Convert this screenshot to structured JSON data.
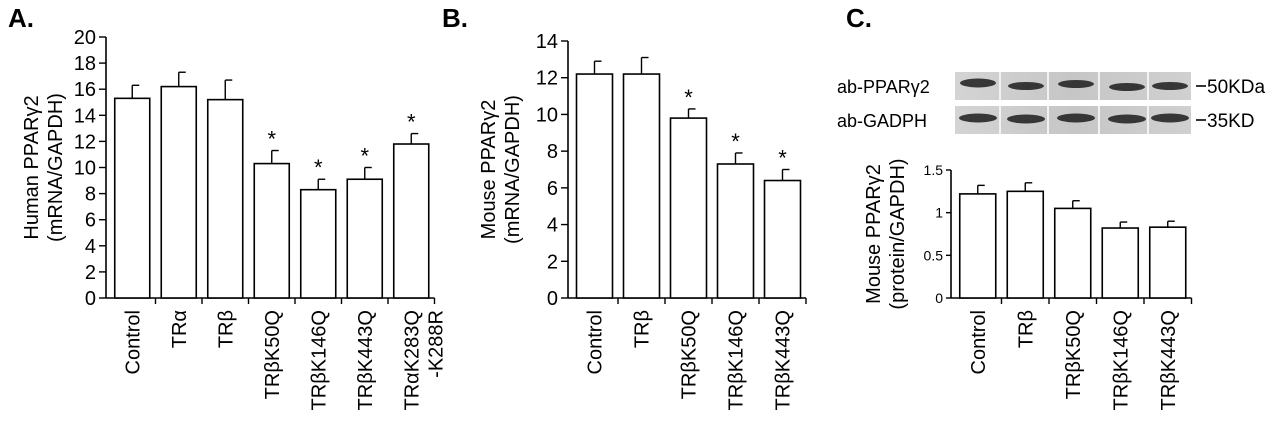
{
  "chart_data": [
    {
      "panel": "A.",
      "type": "bar",
      "ylabel_lines": [
        "Human PPARγ2",
        "(mRNA/GAPDH)"
      ],
      "ylim": [
        0,
        20
      ],
      "yticks": [
        "0",
        "2",
        "4",
        "6",
        "8",
        "10",
        "12",
        "14",
        "16",
        "18",
        "20"
      ],
      "categories": [
        [
          "Control"
        ],
        [
          "TRα"
        ],
        [
          "TRβ"
        ],
        [
          "TRβK50Q"
        ],
        [
          "TRβK146Q"
        ],
        [
          "TRβK443Q"
        ],
        [
          "TRαK283Q",
          "-K288R"
        ]
      ],
      "values": [
        15.3,
        16.2,
        15.2,
        10.3,
        8.3,
        9.1,
        11.8
      ],
      "errors": [
        1.0,
        1.1,
        1.5,
        1.0,
        0.8,
        0.9,
        0.8
      ],
      "significance": [
        "",
        "",
        "",
        "*",
        "*",
        "*",
        "*"
      ]
    },
    {
      "panel": "B.",
      "type": "bar",
      "ylabel_lines": [
        "Mouse PPARγ2",
        "(mRNA/GAPDH)"
      ],
      "ylim": [
        0,
        14
      ],
      "yticks": [
        "0",
        "2",
        "4",
        "6",
        "8",
        "10",
        "12",
        "14"
      ],
      "categories": [
        [
          "Control"
        ],
        [
          "TRβ"
        ],
        [
          "TRβK50Q"
        ],
        [
          "TRβK146Q"
        ],
        [
          "TRβK443Q"
        ]
      ],
      "values": [
        12.2,
        12.2,
        9.8,
        7.3,
        6.4
      ],
      "errors": [
        0.7,
        0.9,
        0.5,
        0.6,
        0.6
      ],
      "significance": [
        "",
        "",
        "*",
        "*",
        "*"
      ]
    },
    {
      "panel": "C.",
      "type": "bar",
      "ylabel_lines": [
        "Mouse PPARγ2",
        "(protein/GAPDH)"
      ],
      "ylim": [
        0,
        1.5
      ],
      "yticks": [
        "0",
        "0.5",
        "1",
        "1.5"
      ],
      "categories": [
        [
          "Control"
        ],
        [
          "TRβ"
        ],
        [
          "TRβK50Q"
        ],
        [
          "TRβK146Q"
        ],
        [
          "TRβK443Q"
        ]
      ],
      "values": [
        1.22,
        1.25,
        1.05,
        0.82,
        0.83
      ],
      "errors": [
        0.1,
        0.1,
        0.09,
        0.07,
        0.07
      ],
      "significance": [
        "",
        "",
        "",
        "",
        ""
      ],
      "blot": {
        "rows": [
          {
            "label": "ab-PPARγ2",
            "marker": "50KDa"
          },
          {
            "label": "ab-GADPH",
            "marker": "35KD"
          }
        ]
      }
    }
  ]
}
